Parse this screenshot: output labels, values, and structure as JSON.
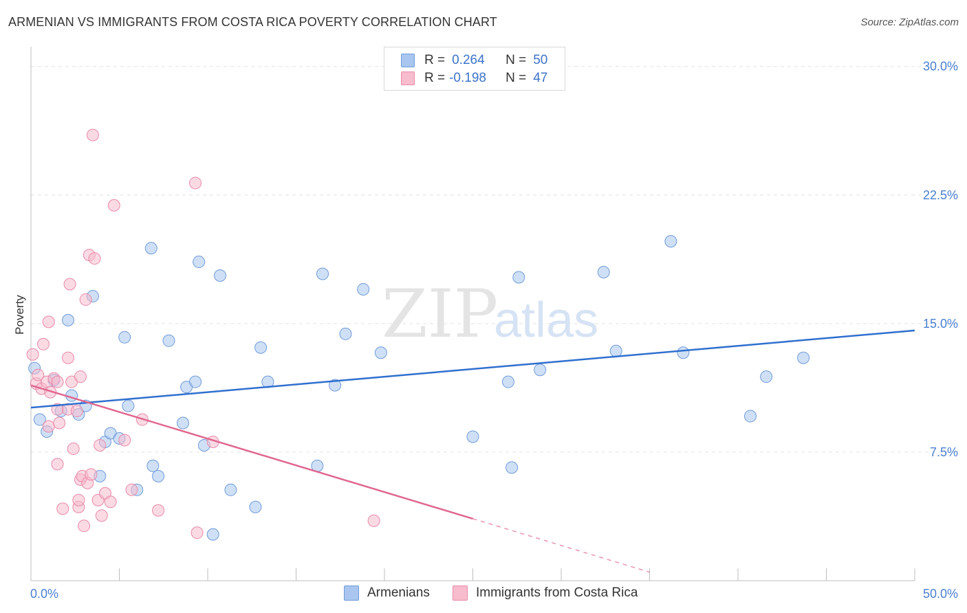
{
  "title": "ARMENIAN VS IMMIGRANTS FROM COSTA RICA POVERTY CORRELATION CHART",
  "source": "Source: ZipAtlas.com",
  "watermark": {
    "zip": "ZIP",
    "atlas": "atlas"
  },
  "legend": {
    "rows": [
      {
        "r_label": "R =",
        "r_value": "0.264",
        "n_label": "N =",
        "n_value": "50",
        "color": "#a8c6ef",
        "border": "#6f9bd8"
      },
      {
        "r_label": "R =",
        "r_value": "-0.198",
        "n_label": "N =",
        "n_value": "47",
        "color": "#f7bccd",
        "border": "#e88aa8"
      }
    ]
  },
  "bottom_legend": [
    {
      "label": "Armenians",
      "color": "#a8c6ef",
      "border": "#6f9bd8"
    },
    {
      "label": "Immigrants from Costa Rica",
      "color": "#f7bccd",
      "border": "#e88aa8"
    }
  ],
  "chart_data": {
    "type": "scatter",
    "title": "ARMENIAN VS IMMIGRANTS FROM COSTA RICA POVERTY CORRELATION CHART",
    "xlabel": "",
    "ylabel": "Poverty",
    "xlim": [
      0,
      50
    ],
    "ylim": [
      0,
      30
    ],
    "x_tick_labels": [
      "0.0%",
      "50.0%"
    ],
    "y_ticks": [
      7.5,
      15.0,
      22.5,
      30.0
    ],
    "y_tick_labels": [
      "7.5%",
      "15.0%",
      "22.5%",
      "30.0%"
    ],
    "series": [
      {
        "name": "Armenians",
        "color": "#a8c6ef",
        "stroke": "#6f9bd8",
        "trend": {
          "x0": 0,
          "y0": 10.1,
          "x1": 50,
          "y1": 14.6,
          "dash_from": null
        },
        "points": [
          [
            0.2,
            12.4
          ],
          [
            0.5,
            9.4
          ],
          [
            0.9,
            8.7
          ],
          [
            1.3,
            11.7
          ],
          [
            1.7,
            9.9
          ],
          [
            2.1,
            15.2
          ],
          [
            2.3,
            10.8
          ],
          [
            2.7,
            9.7
          ],
          [
            3.1,
            10.2
          ],
          [
            3.5,
            16.6
          ],
          [
            3.9,
            6.1
          ],
          [
            4.2,
            8.1
          ],
          [
            4.5,
            8.6
          ],
          [
            5.0,
            8.3
          ],
          [
            5.3,
            14.2
          ],
          [
            5.5,
            10.2
          ],
          [
            6.0,
            5.3
          ],
          [
            6.8,
            19.4
          ],
          [
            6.9,
            6.7
          ],
          [
            7.2,
            6.1
          ],
          [
            7.8,
            14.0
          ],
          [
            8.6,
            9.2
          ],
          [
            8.8,
            11.3
          ],
          [
            9.3,
            11.6
          ],
          [
            9.5,
            18.6
          ],
          [
            9.8,
            7.9
          ],
          [
            10.3,
            2.7
          ],
          [
            10.7,
            17.8
          ],
          [
            11.3,
            5.3
          ],
          [
            12.7,
            4.3
          ],
          [
            13.0,
            13.6
          ],
          [
            13.4,
            11.6
          ],
          [
            16.2,
            6.7
          ],
          [
            16.5,
            17.9
          ],
          [
            17.2,
            11.4
          ],
          [
            17.8,
            14.4
          ],
          [
            18.8,
            17.0
          ],
          [
            19.8,
            13.3
          ],
          [
            25.0,
            8.4
          ],
          [
            27.0,
            11.6
          ],
          [
            27.2,
            6.6
          ],
          [
            27.6,
            17.7
          ],
          [
            28.8,
            12.3
          ],
          [
            32.4,
            18.0
          ],
          [
            33.1,
            13.4
          ],
          [
            36.2,
            19.8
          ],
          [
            36.9,
            13.3
          ],
          [
            40.7,
            9.6
          ],
          [
            41.6,
            11.9
          ],
          [
            43.7,
            13.0
          ]
        ]
      },
      {
        "name": "Immigrants from Costa Rica",
        "color": "#f7bccd",
        "stroke": "#e88aa8",
        "trend": {
          "x0": 0,
          "y0": 11.4,
          "x1": 35,
          "y1": 0.5,
          "dash_from": 25
        },
        "points": [
          [
            0.1,
            13.2
          ],
          [
            0.3,
            11.5
          ],
          [
            0.4,
            12.0
          ],
          [
            0.6,
            11.2
          ],
          [
            0.7,
            13.8
          ],
          [
            0.9,
            11.6
          ],
          [
            1.0,
            9.0
          ],
          [
            1.0,
            15.1
          ],
          [
            1.1,
            11.0
          ],
          [
            1.3,
            11.8
          ],
          [
            1.5,
            11.6
          ],
          [
            1.5,
            10.0
          ],
          [
            1.5,
            6.8
          ],
          [
            1.6,
            9.2
          ],
          [
            1.8,
            4.2
          ],
          [
            2.1,
            10.0
          ],
          [
            2.1,
            13.0
          ],
          [
            2.2,
            17.3
          ],
          [
            2.3,
            11.6
          ],
          [
            2.4,
            7.7
          ],
          [
            2.6,
            9.9
          ],
          [
            2.7,
            4.3
          ],
          [
            2.7,
            4.7
          ],
          [
            2.8,
            11.9
          ],
          [
            2.8,
            5.9
          ],
          [
            2.9,
            6.1
          ],
          [
            3.0,
            3.2
          ],
          [
            3.1,
            16.4
          ],
          [
            3.2,
            5.7
          ],
          [
            3.3,
            19.0
          ],
          [
            3.4,
            6.2
          ],
          [
            3.5,
            26.0
          ],
          [
            3.6,
            18.8
          ],
          [
            3.8,
            4.7
          ],
          [
            4.0,
            3.8
          ],
          [
            4.2,
            5.1
          ],
          [
            4.5,
            4.6
          ],
          [
            4.7,
            21.9
          ],
          [
            5.3,
            8.2
          ],
          [
            5.7,
            5.3
          ],
          [
            6.3,
            9.4
          ],
          [
            7.2,
            4.1
          ],
          [
            9.3,
            23.2
          ],
          [
            9.4,
            2.8
          ],
          [
            10.3,
            8.1
          ],
          [
            19.4,
            3.5
          ],
          [
            3.9,
            7.9
          ]
        ]
      }
    ]
  }
}
